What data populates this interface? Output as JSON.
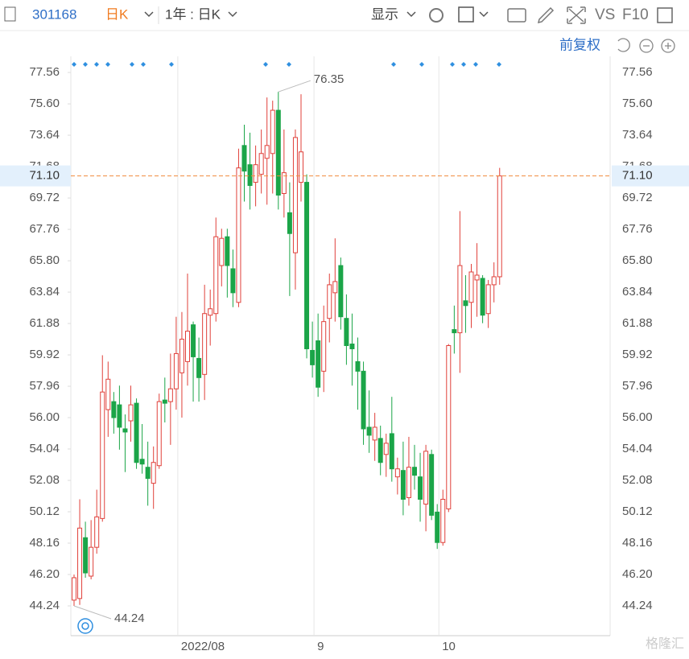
{
  "toolbar": {
    "code": "301168",
    "period": "日K",
    "range": "1年 : 日K",
    "display": "显示",
    "vs": "VS",
    "f10": "F10"
  },
  "adjust": "前复权",
  "watermark": "格隆汇",
  "chart_data": {
    "type": "candlestick",
    "categories": [
      null,
      null,
      null,
      null,
      null,
      null,
      null,
      null,
      null,
      null,
      null,
      null,
      null,
      null,
      null,
      null,
      null,
      null,
      "2022/08",
      null,
      null,
      null,
      null,
      null,
      null,
      null,
      null,
      null,
      null,
      null,
      null,
      null,
      null,
      null,
      null,
      null,
      null,
      null,
      null,
      null,
      null,
      null,
      "9",
      null,
      null,
      null,
      null,
      null,
      null,
      null,
      null,
      null,
      null,
      null,
      null,
      null,
      null,
      null,
      null,
      null,
      null,
      null,
      null,
      null,
      "10",
      null,
      null,
      null,
      null,
      null,
      null,
      null,
      null,
      null,
      null,
      null
    ],
    "open": [
      44.6,
      44.7,
      48.5,
      46.1,
      47.9,
      49.7,
      56.5,
      57.0,
      56.8,
      55.3,
      55.8,
      56.9,
      53.4,
      52.9,
      51.9,
      53.0,
      57.1,
      57.0,
      57.8,
      58.8,
      59.5,
      61.8,
      59.7,
      58.7,
      62.4,
      62.5,
      65.5,
      67.3,
      65.3,
      63.2,
      73.0,
      71.8,
      70.7,
      71.2,
      72.2,
      72.5,
      75.2,
      70.0,
      68.8,
      66.3,
      70.7,
      70.7,
      60.2,
      60.8,
      58.9,
      62.2,
      63.8,
      65.5,
      62.2,
      60.6,
      59.5,
      58.9,
      55.4,
      54.6,
      54.7,
      53.7,
      55.0,
      52.3,
      52.7,
      51.0,
      52.9,
      52.3,
      50.6,
      53.7,
      50.1,
      48.2,
      50.3,
      61.5,
      61.3,
      63.3,
      63.2,
      64.6,
      64.7,
      62.5,
      64.3,
      64.8
    ],
    "high": [
      46.2,
      50.9,
      49.5,
      49.6,
      51.5,
      59.9,
      59.5,
      57.6,
      58.0,
      56.2,
      58.0,
      57.2,
      55.6,
      54.5,
      54.2,
      57.5,
      58.5,
      60.0,
      62.3,
      62.6,
      65.0,
      62.0,
      61.0,
      64.3,
      64.0,
      68.5,
      67.8,
      67.8,
      66.5,
      72.8,
      74.3,
      73.8,
      73.0,
      74.0,
      76.0,
      75.8,
      76.35,
      74.0,
      70.7,
      74.0,
      76.2,
      71.2,
      62.0,
      62.5,
      63.0,
      65.0,
      67.2,
      66.0,
      63.7,
      62.5,
      61.0,
      59.5,
      57.7,
      56.3,
      55.5,
      55.0,
      57.3,
      53.5,
      54.5,
      54.8,
      54.3,
      53.8,
      54.3,
      54.0,
      50.6,
      51.5,
      60.6,
      63.0,
      68.9,
      64.9,
      65.6,
      66.9,
      64.9,
      64.6,
      65.7,
      71.6
    ],
    "low": [
      44.24,
      44.3,
      46.0,
      45.9,
      47.5,
      49.5,
      54.8,
      55.0,
      54.0,
      52.6,
      54.5,
      52.8,
      52.5,
      50.5,
      50.3,
      52.8,
      55.7,
      54.3,
      56.5,
      56.0,
      58.0,
      57.0,
      57.0,
      57.1,
      60.5,
      62.0,
      64.2,
      63.5,
      62.9,
      62.9,
      69.5,
      69.0,
      69.2,
      70.0,
      69.3,
      70.0,
      69.0,
      68.5,
      63.6,
      64.0,
      69.5,
      59.7,
      58.5,
      57.3,
      57.6,
      60.7,
      62.0,
      61.5,
      59.3,
      58.0,
      56.5,
      54.3,
      53.8,
      53.3,
      52.4,
      52.3,
      52.0,
      51.2,
      49.9,
      50.5,
      51.5,
      49.5,
      48.9,
      49.6,
      47.8,
      48.0,
      50.1,
      60.0,
      58.8,
      61.3,
      61.6,
      62.3,
      61.9,
      61.6,
      63.2,
      64.3
    ],
    "close": [
      46.0,
      49.1,
      46.3,
      47.9,
      49.8,
      57.6,
      58.4,
      56.0,
      55.4,
      55.1,
      56.8,
      53.2,
      53.1,
      52.2,
      53.2,
      57.0,
      56.9,
      57.8,
      60.0,
      60.9,
      61.4,
      59.8,
      58.5,
      62.5,
      62.8,
      67.3,
      67.2,
      65.5,
      63.8,
      71.6,
      71.4,
      70.5,
      71.8,
      72.5,
      73.0,
      75.2,
      69.9,
      71.3,
      67.5,
      73.5,
      72.6,
      60.3,
      59.3,
      57.9,
      62.0,
      64.3,
      64.5,
      62.3,
      60.5,
      60.3,
      58.9,
      55.3,
      54.9,
      55.4,
      53.2,
      54.4,
      52.8,
      52.8,
      50.9,
      52.9,
      52.4,
      50.9,
      53.9,
      49.9,
      48.2,
      50.9,
      60.5,
      61.3,
      65.5,
      63.0,
      65.1,
      64.9,
      62.4,
      64.3,
      64.8,
      71.1
    ],
    "up_color": "#e0403a",
    "down_color": "#1ba548",
    "ylim": [
      42.38,
      78.57
    ],
    "yticks": [
      44.24,
      {
        "value": 46.2,
        "label": "46.20"
      },
      48.16,
      50.12,
      52.08,
      54.04,
      {
        "value": 56,
        "label": "56.00"
      },
      57.96,
      59.92,
      61.88,
      63.84,
      {
        "value": 65.8,
        "label": "65.80"
      },
      67.76,
      69.72,
      71.68,
      73.64,
      {
        "value": 75.6,
        "label": "75.60"
      },
      77.56
    ],
    "last_price": {
      "value": 71.1,
      "label": "71.10"
    },
    "max_index": 36,
    "min_index": 0
  }
}
